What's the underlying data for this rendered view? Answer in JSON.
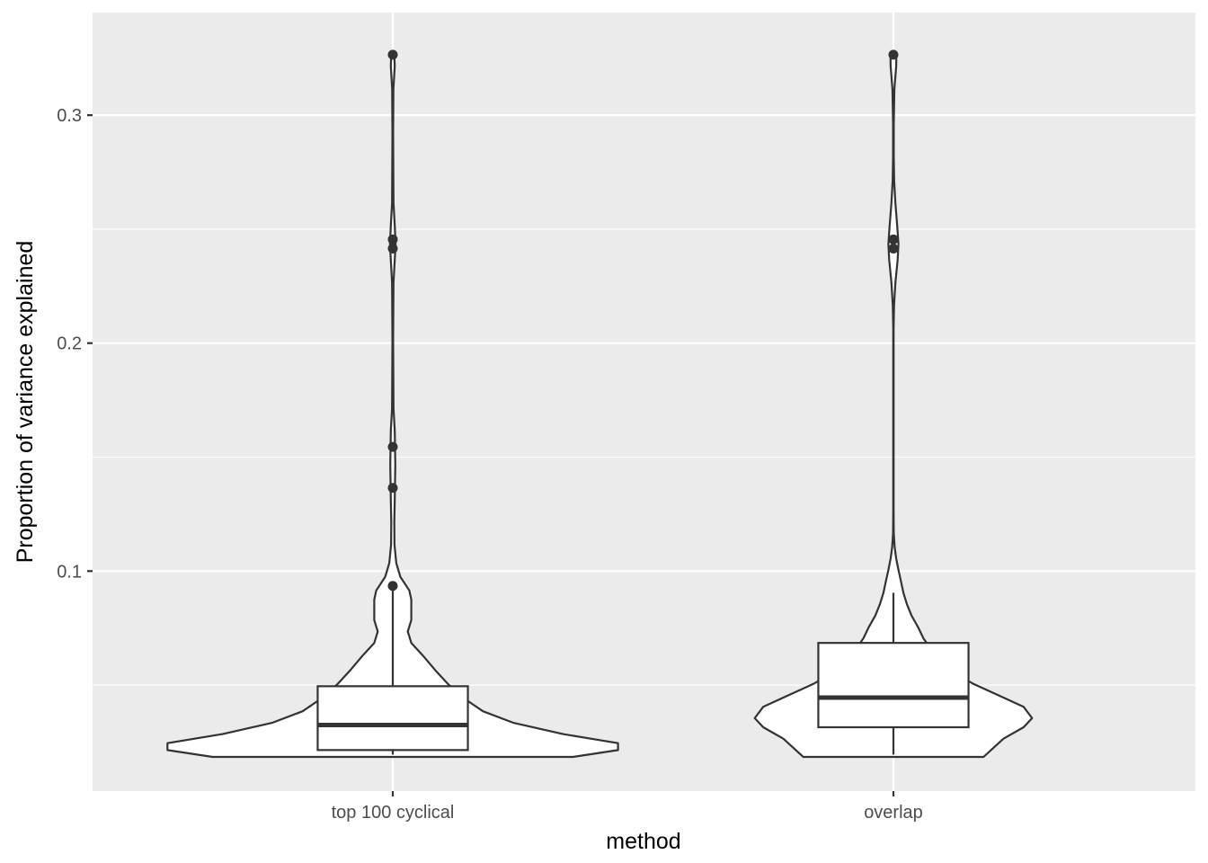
{
  "chart_data": {
    "type": "violin",
    "xlabel": "method",
    "ylabel": "Proportion of variance explained",
    "categories": [
      "top 100 cyclical",
      "overlap"
    ],
    "y_ticks": [
      0.1,
      0.2,
      0.3
    ],
    "y_tick_labels": [
      "0.1",
      "0.2",
      "0.3"
    ],
    "ylim": [
      0.0035,
      0.345
    ],
    "grid": true,
    "panel_background": "#ebebeb",
    "grid_color": "#ffffff",
    "violin_fill": "#ffffff",
    "line_color": "#333333",
    "series": [
      {
        "category": "top 100 cyclical",
        "boxplot": {
          "min": 0.0195,
          "q1": 0.0215,
          "median": 0.0325,
          "q3": 0.0495,
          "max": 0.0925
        },
        "outliers": [
          0.0935,
          0.1365,
          0.1545,
          0.2415,
          0.2455,
          0.3265
        ],
        "violin_profile": [
          {
            "y": 0.0185,
            "w": 0.36
          },
          {
            "y": 0.0215,
            "w": 0.45
          },
          {
            "y": 0.0245,
            "w": 0.45
          },
          {
            "y": 0.0285,
            "w": 0.34
          },
          {
            "y": 0.0335,
            "w": 0.24
          },
          {
            "y": 0.0385,
            "w": 0.18
          },
          {
            "y": 0.0445,
            "w": 0.14
          },
          {
            "y": 0.0505,
            "w": 0.11
          },
          {
            "y": 0.0565,
            "w": 0.085
          },
          {
            "y": 0.0625,
            "w": 0.062
          },
          {
            "y": 0.0685,
            "w": 0.037
          },
          {
            "y": 0.0735,
            "w": 0.03
          },
          {
            "y": 0.0785,
            "w": 0.037
          },
          {
            "y": 0.0835,
            "w": 0.037
          },
          {
            "y": 0.0875,
            "w": 0.037
          },
          {
            "y": 0.0915,
            "w": 0.033
          },
          {
            "y": 0.0975,
            "w": 0.015
          },
          {
            "y": 0.1035,
            "w": 0.007
          },
          {
            "y": 0.1115,
            "w": 0.0035
          },
          {
            "y": 0.1215,
            "w": 0.003
          },
          {
            "y": 0.1315,
            "w": 0.004
          },
          {
            "y": 0.1465,
            "w": 0.005
          },
          {
            "y": 0.1615,
            "w": 0.004
          },
          {
            "y": 0.1715,
            "w": 0.0015
          },
          {
            "y": 0.2015,
            "w": 0.0008
          },
          {
            "y": 0.2265,
            "w": 0.0015
          },
          {
            "y": 0.2365,
            "w": 0.004
          },
          {
            "y": 0.2435,
            "w": 0.0055
          },
          {
            "y": 0.2515,
            "w": 0.004
          },
          {
            "y": 0.2615,
            "w": 0.0015
          },
          {
            "y": 0.2915,
            "w": 0.0008
          },
          {
            "y": 0.3115,
            "w": 0.0012
          },
          {
            "y": 0.3215,
            "w": 0.004
          },
          {
            "y": 0.3265,
            "w": 0.003
          }
        ]
      },
      {
        "category": "overlap",
        "boxplot": {
          "min": 0.0195,
          "q1": 0.0315,
          "median": 0.0445,
          "q3": 0.0685,
          "max": 0.0905
        },
        "outliers": [
          0.2415,
          0.2455,
          0.3265
        ],
        "violin_profile": [
          {
            "y": 0.0185,
            "w": 0.18
          },
          {
            "y": 0.0225,
            "w": 0.2
          },
          {
            "y": 0.0265,
            "w": 0.22
          },
          {
            "y": 0.0315,
            "w": 0.26
          },
          {
            "y": 0.0355,
            "w": 0.277
          },
          {
            "y": 0.0405,
            "w": 0.26
          },
          {
            "y": 0.0455,
            "w": 0.21
          },
          {
            "y": 0.0505,
            "w": 0.16
          },
          {
            "y": 0.0555,
            "w": 0.12
          },
          {
            "y": 0.0605,
            "w": 0.094
          },
          {
            "y": 0.0655,
            "w": 0.076
          },
          {
            "y": 0.0705,
            "w": 0.06
          },
          {
            "y": 0.0755,
            "w": 0.049
          },
          {
            "y": 0.0805,
            "w": 0.036
          },
          {
            "y": 0.0855,
            "w": 0.027
          },
          {
            "y": 0.0905,
            "w": 0.02
          },
          {
            "y": 0.0955,
            "w": 0.015
          },
          {
            "y": 0.1005,
            "w": 0.01
          },
          {
            "y": 0.1055,
            "w": 0.0055
          },
          {
            "y": 0.1105,
            "w": 0.0025
          },
          {
            "y": 0.1165,
            "w": 0.0008
          },
          {
            "y": 0.1265,
            "w": 0.0004
          },
          {
            "y": 0.2065,
            "w": 0.0004
          },
          {
            "y": 0.2165,
            "w": 0.0012
          },
          {
            "y": 0.2265,
            "w": 0.004
          },
          {
            "y": 0.2365,
            "w": 0.0085
          },
          {
            "y": 0.2435,
            "w": 0.01
          },
          {
            "y": 0.2515,
            "w": 0.0075
          },
          {
            "y": 0.2615,
            "w": 0.004
          },
          {
            "y": 0.2715,
            "w": 0.0015
          },
          {
            "y": 0.2815,
            "w": 0.0008
          },
          {
            "y": 0.2965,
            "w": 0.0008
          },
          {
            "y": 0.3115,
            "w": 0.002
          },
          {
            "y": 0.3215,
            "w": 0.0055
          },
          {
            "y": 0.3265,
            "w": 0.006
          }
        ]
      }
    ]
  }
}
